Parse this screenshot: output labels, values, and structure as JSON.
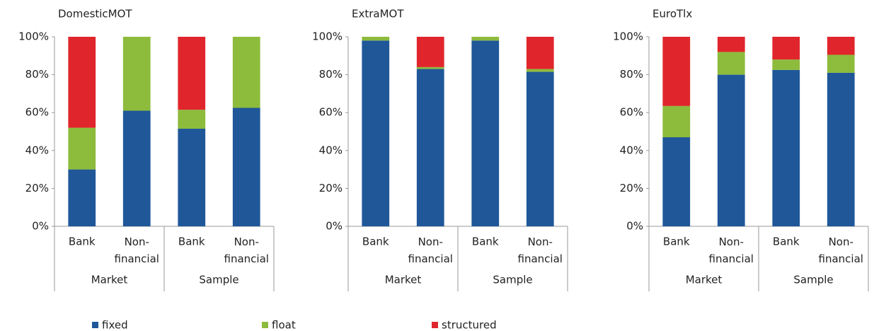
{
  "chart_data": [
    {
      "type": "stacked_bar",
      "title": "DomesticMOT",
      "categories": [
        "Bank",
        "Non-financial",
        "Bank",
        "Non-financial"
      ],
      "groups": [
        "Market",
        "Sample"
      ],
      "ylim": [
        0,
        100
      ],
      "yticks": [
        {
          "value": 0,
          "label": "0%"
        },
        {
          "value": 20,
          "label": "20%"
        },
        {
          "value": 40,
          "label": "40%"
        },
        {
          "value": 60,
          "label": "60%"
        },
        {
          "value": 80,
          "label": "80%"
        },
        {
          "value": 100,
          "label": "100%"
        }
      ],
      "series": [
        {
          "name": "fixed",
          "color": "#1f5799",
          "values": [
            30,
            61,
            51.5,
            62.5
          ]
        },
        {
          "name": "float",
          "color": "#8dbb3c",
          "values": [
            22,
            39,
            10,
            37.5
          ]
        },
        {
          "name": "structured",
          "color": "#e0262c",
          "values": [
            48,
            0,
            38.5,
            0
          ]
        }
      ]
    },
    {
      "type": "stacked_bar",
      "title": "ExtraMOT",
      "categories": [
        "Bank",
        "Non-financial",
        "Bank",
        "Non-financial"
      ],
      "groups": [
        "Market",
        "Sample"
      ],
      "ylim": [
        0,
        100
      ],
      "yticks": [
        {
          "value": 0,
          "label": "0%"
        },
        {
          "value": 20,
          "label": "20%"
        },
        {
          "value": 40,
          "label": "40%"
        },
        {
          "value": 60,
          "label": "60%"
        },
        {
          "value": 80,
          "label": "80%"
        },
        {
          "value": 100,
          "label": "100%"
        }
      ],
      "series": [
        {
          "name": "fixed",
          "color": "#1f5799",
          "values": [
            98,
            83,
            98,
            81.5
          ]
        },
        {
          "name": "float",
          "color": "#8dbb3c",
          "values": [
            2,
            1,
            2,
            1.5
          ]
        },
        {
          "name": "structured",
          "color": "#e0262c",
          "values": [
            0,
            16,
            0,
            17
          ]
        }
      ]
    },
    {
      "type": "stacked_bar",
      "title": "EuroTlx",
      "categories": [
        "Bank",
        "Non-financial",
        "Bank",
        "Non-financial"
      ],
      "groups": [
        "Market",
        "Sample"
      ],
      "ylim": [
        0,
        100
      ],
      "yticks": [
        {
          "value": 0,
          "label": "0%"
        },
        {
          "value": 20,
          "label": "20%"
        },
        {
          "value": 40,
          "label": "40%"
        },
        {
          "value": 60,
          "label": "60%"
        },
        {
          "value": 80,
          "label": "80%"
        },
        {
          "value": 100,
          "label": "100%"
        }
      ],
      "series": [
        {
          "name": "fixed",
          "color": "#1f5799",
          "values": [
            47,
            80,
            82.5,
            81
          ]
        },
        {
          "name": "float",
          "color": "#8dbb3c",
          "values": [
            16.5,
            12,
            5.5,
            9.5
          ]
        },
        {
          "name": "structured",
          "color": "#e0262c",
          "values": [
            36.5,
            8,
            12,
            9.5
          ]
        }
      ]
    }
  ]
}
